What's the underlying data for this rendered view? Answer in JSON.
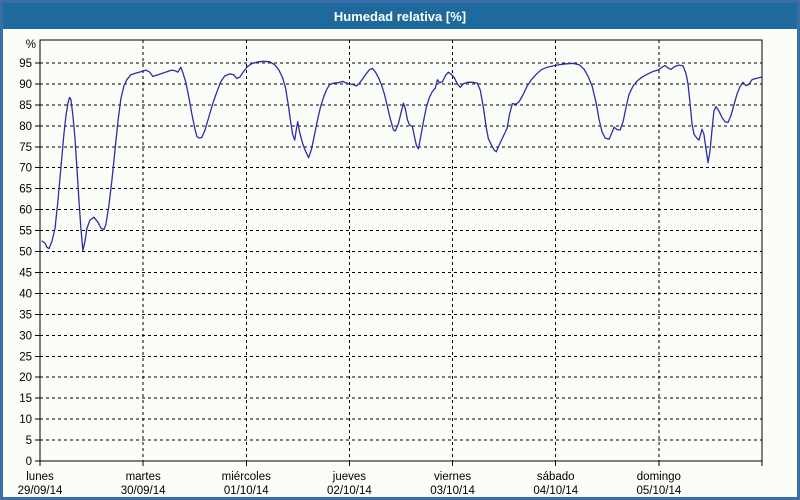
{
  "window": {
    "title": "Humedad relativa [%]"
  },
  "colors": {
    "titlebar_bg": "#1e6a9c",
    "title_text": "#ffffff",
    "frame_border": "#3a6ea8",
    "window_bg": "#fbfdf8",
    "line": "#2d2da9",
    "grid": "#000000",
    "axis_text": "#000000"
  },
  "chart_data": {
    "type": "line",
    "title": "Humedad relativa [%]",
    "ylabel": "%",
    "ylim": [
      0,
      100.5
    ],
    "yticks": [
      0,
      5,
      10,
      15,
      20,
      25,
      30,
      35,
      40,
      45,
      50,
      55,
      60,
      65,
      70,
      75,
      80,
      85,
      90,
      95
    ],
    "grid": true,
    "legend": "none",
    "x_unit": "days_since_monday_midnight",
    "x_range_days": [
      0,
      7
    ],
    "x_days": [
      {
        "label": "lunes",
        "date": "29/09/14"
      },
      {
        "label": "martes",
        "date": "30/09/14"
      },
      {
        "label": "miércoles",
        "date": "01/10/14"
      },
      {
        "label": "jueves",
        "date": "02/10/14"
      },
      {
        "label": "viernes",
        "date": "03/10/14"
      },
      {
        "label": "sábado",
        "date": "04/10/14"
      },
      {
        "label": "domingo",
        "date": "05/10/14"
      }
    ],
    "series": [
      {
        "name": "Humedad relativa [%]",
        "points": [
          [
            0.02,
            52.5
          ],
          [
            0.048,
            52
          ],
          [
            0.068,
            51
          ],
          [
            0.087,
            50.7
          ],
          [
            0.116,
            52.5
          ],
          [
            0.145,
            55.5
          ],
          [
            0.174,
            62
          ],
          [
            0.203,
            70
          ],
          [
            0.232,
            78
          ],
          [
            0.252,
            82.5
          ],
          [
            0.271,
            85.5
          ],
          [
            0.286,
            86.8
          ],
          [
            0.3,
            86.3
          ],
          [
            0.319,
            82.5
          ],
          [
            0.339,
            77
          ],
          [
            0.358,
            70
          ],
          [
            0.378,
            62
          ],
          [
            0.397,
            55.5
          ],
          [
            0.416,
            50.3
          ],
          [
            0.436,
            52.5
          ],
          [
            0.455,
            55.5
          ],
          [
            0.484,
            57.5
          ],
          [
            0.523,
            58.2
          ],
          [
            0.561,
            57
          ],
          [
            0.59,
            55.6
          ],
          [
            0.62,
            55.2
          ],
          [
            0.639,
            56.5
          ],
          [
            0.668,
            61
          ],
          [
            0.697,
            67
          ],
          [
            0.726,
            74
          ],
          [
            0.755,
            81
          ],
          [
            0.784,
            86.5
          ],
          [
            0.813,
            89.5
          ],
          [
            0.842,
            91
          ],
          [
            0.881,
            92.2
          ],
          [
            0.929,
            92.6
          ],
          [
            0.978,
            92.9
          ],
          [
            1.026,
            93.3
          ],
          [
            1.065,
            92.8
          ],
          [
            1.094,
            91.8
          ],
          [
            1.133,
            92.1
          ],
          [
            1.181,
            92.5
          ],
          [
            1.229,
            92.9
          ],
          [
            1.278,
            93.3
          ],
          [
            1.317,
            93.1
          ],
          [
            1.336,
            92.8
          ],
          [
            1.365,
            94
          ],
          [
            1.384,
            92.8
          ],
          [
            1.413,
            90.5
          ],
          [
            1.442,
            87
          ],
          [
            1.471,
            83
          ],
          [
            1.5,
            79.5
          ],
          [
            1.52,
            77.5
          ],
          [
            1.539,
            77.1
          ],
          [
            1.568,
            77.2
          ],
          [
            1.597,
            78.8
          ],
          [
            1.636,
            82
          ],
          [
            1.675,
            85.3
          ],
          [
            1.713,
            88
          ],
          [
            1.752,
            90.5
          ],
          [
            1.791,
            91.9
          ],
          [
            1.839,
            92.4
          ],
          [
            1.878,
            92.2
          ],
          [
            1.907,
            91.3
          ],
          [
            1.936,
            91.6
          ],
          [
            1.975,
            93
          ],
          [
            2.013,
            94.2
          ],
          [
            2.052,
            94.8
          ],
          [
            2.101,
            95.2
          ],
          [
            2.159,
            95.4
          ],
          [
            2.226,
            95.3
          ],
          [
            2.275,
            94.6
          ],
          [
            2.314,
            93.4
          ],
          [
            2.352,
            91.5
          ],
          [
            2.381,
            89
          ],
          [
            2.41,
            84.5
          ],
          [
            2.43,
            81
          ],
          [
            2.449,
            78
          ],
          [
            2.469,
            76.6
          ],
          [
            2.488,
            79.5
          ],
          [
            2.498,
            81
          ],
          [
            2.517,
            78.5
          ],
          [
            2.546,
            75.8
          ],
          [
            2.575,
            73.9
          ],
          [
            2.604,
            72.4
          ],
          [
            2.633,
            74.5
          ],
          [
            2.662,
            78
          ],
          [
            2.691,
            81.5
          ],
          [
            2.72,
            84.5
          ],
          [
            2.749,
            86.8
          ],
          [
            2.778,
            88.6
          ],
          [
            2.807,
            89.8
          ],
          [
            2.846,
            90.2
          ],
          [
            2.894,
            90.3
          ],
          [
            2.933,
            90.6
          ],
          [
            2.982,
            90.1
          ],
          [
            3.03,
            89.9
          ],
          [
            3.069,
            89.5
          ],
          [
            3.107,
            90.5
          ],
          [
            3.156,
            92.2
          ],
          [
            3.195,
            93.4
          ],
          [
            3.224,
            93.7
          ],
          [
            3.253,
            92.8
          ],
          [
            3.282,
            91.5
          ],
          [
            3.311,
            89.8
          ],
          [
            3.34,
            87.5
          ],
          [
            3.369,
            84.5
          ],
          [
            3.398,
            81.5
          ],
          [
            3.427,
            79
          ],
          [
            3.446,
            78.8
          ],
          [
            3.475,
            80.5
          ],
          [
            3.504,
            83.5
          ],
          [
            3.524,
            85.4
          ],
          [
            3.543,
            84
          ],
          [
            3.562,
            81.5
          ],
          [
            3.582,
            80.2
          ],
          [
            3.611,
            79.8
          ],
          [
            3.63,
            77.5
          ],
          [
            3.649,
            75.3
          ],
          [
            3.669,
            74.5
          ],
          [
            3.688,
            77
          ],
          [
            3.717,
            81
          ],
          [
            3.746,
            84.5
          ],
          [
            3.775,
            86.8
          ],
          [
            3.804,
            88.2
          ],
          [
            3.833,
            89
          ],
          [
            3.853,
            91
          ],
          [
            3.872,
            90.3
          ],
          [
            3.901,
            90.5
          ],
          [
            3.93,
            92
          ],
          [
            3.959,
            92.8
          ],
          [
            3.988,
            92.3
          ],
          [
            4.017,
            91.5
          ],
          [
            4.046,
            90
          ],
          [
            4.075,
            89.2
          ],
          [
            4.104,
            90
          ],
          [
            4.143,
            90.4
          ],
          [
            4.191,
            90.4
          ],
          [
            4.24,
            90.2
          ],
          [
            4.269,
            88.5
          ],
          [
            4.298,
            84.5
          ],
          [
            4.327,
            79.5
          ],
          [
            4.346,
            77
          ],
          [
            4.375,
            75.5
          ],
          [
            4.404,
            74.2
          ],
          [
            4.424,
            73.8
          ],
          [
            4.453,
            75.5
          ],
          [
            4.482,
            77
          ],
          [
            4.511,
            78.5
          ],
          [
            4.53,
            79.5
          ],
          [
            4.55,
            82.5
          ],
          [
            4.579,
            85.3
          ],
          [
            4.617,
            85.2
          ],
          [
            4.646,
            85.8
          ],
          [
            4.685,
            87.5
          ],
          [
            4.724,
            89.5
          ],
          [
            4.763,
            91
          ],
          [
            4.811,
            92.3
          ],
          [
            4.86,
            93.4
          ],
          [
            4.918,
            94
          ],
          [
            4.976,
            94.3
          ],
          [
            5.034,
            94.6
          ],
          [
            5.102,
            94.8
          ],
          [
            5.169,
            94.9
          ],
          [
            5.227,
            94.6
          ],
          [
            5.276,
            93.5
          ],
          [
            5.314,
            91.8
          ],
          [
            5.353,
            89.5
          ],
          [
            5.392,
            85.5
          ],
          [
            5.421,
            81.5
          ],
          [
            5.45,
            78.5
          ],
          [
            5.479,
            77.1
          ],
          [
            5.518,
            76.8
          ],
          [
            5.547,
            78.5
          ],
          [
            5.566,
            79.7
          ],
          [
            5.595,
            79.1
          ],
          [
            5.624,
            79
          ],
          [
            5.653,
            81
          ],
          [
            5.682,
            84.5
          ],
          [
            5.711,
            87.5
          ],
          [
            5.75,
            89.5
          ],
          [
            5.789,
            90.7
          ],
          [
            5.837,
            91.6
          ],
          [
            5.886,
            92.3
          ],
          [
            5.944,
            93
          ],
          [
            5.992,
            93.3
          ],
          [
            6.031,
            94
          ],
          [
            6.06,
            94.4
          ],
          [
            6.089,
            93.8
          ],
          [
            6.118,
            93.5
          ],
          [
            6.157,
            94.2
          ],
          [
            6.196,
            94.5
          ],
          [
            6.234,
            94.3
          ],
          [
            6.263,
            92.5
          ],
          [
            6.283,
            90
          ],
          [
            6.302,
            85.5
          ],
          [
            6.321,
            80.5
          ],
          [
            6.341,
            78
          ],
          [
            6.37,
            77
          ],
          [
            6.389,
            76.6
          ],
          [
            6.418,
            79.2
          ],
          [
            6.437,
            78
          ],
          [
            6.457,
            74.5
          ],
          [
            6.476,
            71.2
          ],
          [
            6.496,
            74
          ],
          [
            6.515,
            79
          ],
          [
            6.534,
            83.5
          ],
          [
            6.554,
            84.6
          ],
          [
            6.583,
            83.5
          ],
          [
            6.612,
            82
          ],
          [
            6.641,
            81
          ],
          [
            6.67,
            80.8
          ],
          [
            6.699,
            82.5
          ],
          [
            6.728,
            85
          ],
          [
            6.757,
            87.5
          ],
          [
            6.786,
            89.3
          ],
          [
            6.815,
            90.4
          ],
          [
            6.844,
            89.6
          ],
          [
            6.873,
            89.9
          ],
          [
            6.902,
            91
          ],
          [
            6.941,
            91.3
          ],
          [
            6.99,
            91.6
          ]
        ]
      }
    ]
  }
}
